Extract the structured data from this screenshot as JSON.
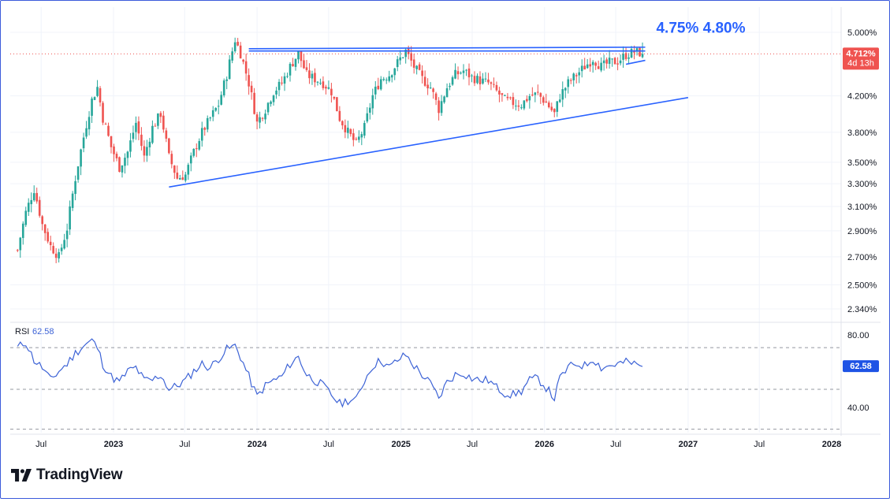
{
  "colors": {
    "up": "#26a69a",
    "down": "#ef5350",
    "trendline": "#2962ff",
    "rsi_line": "#3d63d6",
    "axis_text": "#131722",
    "grid": "#f0f3fa",
    "price_badge": "#ef5350",
    "rsi_badge": "#1e53e5"
  },
  "chart_data": {
    "type": "candlestick",
    "symbol_timeframe": "weekly",
    "price_scale": "log",
    "y_ticks": [
      "5.000%",
      "4.200%",
      "3.800%",
      "3.500%",
      "3.300%",
      "3.100%",
      "2.900%",
      "2.700%",
      "2.500%",
      "2.340%"
    ],
    "y_tick_values": [
      5.0,
      4.2,
      3.8,
      3.5,
      3.3,
      3.1,
      2.9,
      2.7,
      2.5,
      2.34
    ],
    "x_ticks": [
      "Jul",
      "2023",
      "Jul",
      "2024",
      "Jul",
      "2025",
      "Jul",
      "2026",
      "Jul",
      "2027",
      "Jul",
      "2028"
    ],
    "x_tick_dates": [
      "2022-07-01",
      "2023-01-01",
      "2023-07-01",
      "2024-01-01",
      "2024-07-01",
      "2025-01-01",
      "2025-07-01",
      "2026-01-01",
      "2026-07-01",
      "2027-01-01",
      "2027-07-01",
      "2028-01-01"
    ],
    "last_price_label": "4.712%",
    "countdown_label": "4d 13h",
    "last_price": 4.712,
    "annotation": "4.75% 4.80%",
    "price_path": [
      [
        "2022-05-02",
        2.75
      ],
      [
        "2022-05-23",
        3.05
      ],
      [
        "2022-06-13",
        3.25
      ],
      [
        "2022-07-04",
        2.95
      ],
      [
        "2022-07-25",
        2.78
      ],
      [
        "2022-08-15",
        2.7
      ],
      [
        "2022-09-05",
        2.92
      ],
      [
        "2022-09-26",
        3.35
      ],
      [
        "2022-10-17",
        3.75
      ],
      [
        "2022-11-07",
        4.15
      ],
      [
        "2022-11-21",
        4.3
      ],
      [
        "2022-12-05",
        3.95
      ],
      [
        "2022-12-26",
        3.65
      ],
      [
        "2023-01-16",
        3.45
      ],
      [
        "2023-02-06",
        3.6
      ],
      [
        "2023-02-27",
        3.9
      ],
      [
        "2023-03-20",
        3.55
      ],
      [
        "2023-04-10",
        3.85
      ],
      [
        "2023-05-01",
        4.0
      ],
      [
        "2023-05-22",
        3.55
      ],
      [
        "2023-06-12",
        3.35
      ],
      [
        "2023-07-03",
        3.38
      ],
      [
        "2023-07-24",
        3.6
      ],
      [
        "2023-08-14",
        3.8
      ],
      [
        "2023-09-04",
        3.95
      ],
      [
        "2023-09-25",
        4.1
      ],
      [
        "2023-10-16",
        4.45
      ],
      [
        "2023-11-06",
        4.9
      ],
      [
        "2023-11-20",
        4.72
      ],
      [
        "2023-12-11",
        4.35
      ],
      [
        "2024-01-01",
        3.9
      ],
      [
        "2024-01-22",
        4.05
      ],
      [
        "2024-02-12",
        4.25
      ],
      [
        "2024-03-04",
        4.35
      ],
      [
        "2024-03-25",
        4.55
      ],
      [
        "2024-04-15",
        4.72
      ],
      [
        "2024-05-06",
        4.45
      ],
      [
        "2024-05-27",
        4.4
      ],
      [
        "2024-06-17",
        4.35
      ],
      [
        "2024-07-08",
        4.25
      ],
      [
        "2024-07-29",
        3.95
      ],
      [
        "2024-08-19",
        3.8
      ],
      [
        "2024-09-09",
        3.68
      ],
      [
        "2024-09-30",
        3.85
      ],
      [
        "2024-10-21",
        4.2
      ],
      [
        "2024-11-11",
        4.4
      ],
      [
        "2024-12-02",
        4.45
      ],
      [
        "2024-12-23",
        4.6
      ],
      [
        "2025-01-13",
        4.75
      ],
      [
        "2025-02-03",
        4.55
      ],
      [
        "2025-02-24",
        4.4
      ],
      [
        "2025-03-17",
        4.3
      ],
      [
        "2025-04-07",
        4.05
      ],
      [
        "2025-04-28",
        4.3
      ],
      [
        "2025-05-19",
        4.45
      ],
      [
        "2025-06-09",
        4.5
      ],
      [
        "2025-06-30",
        4.42
      ],
      [
        "2025-07-21",
        4.38
      ],
      [
        "2025-08-11",
        4.35
      ],
      [
        "2025-09-01",
        4.25
      ],
      [
        "2025-09-22",
        4.15
      ],
      [
        "2025-10-13",
        4.12
      ],
      [
        "2025-11-03",
        4.1
      ],
      [
        "2025-11-24",
        4.2
      ],
      [
        "2025-12-15",
        4.22
      ],
      [
        "2026-01-05",
        4.12
      ],
      [
        "2026-01-26",
        4.0
      ],
      [
        "2026-02-09",
        4.2
      ],
      [
        "2026-03-02",
        4.35
      ],
      [
        "2026-03-23",
        4.45
      ],
      [
        "2026-04-13",
        4.55
      ],
      [
        "2026-05-04",
        4.65
      ],
      [
        "2026-05-25",
        4.55
      ],
      [
        "2026-06-15",
        4.6
      ],
      [
        "2026-07-06",
        4.62
      ],
      [
        "2026-07-27",
        4.7
      ],
      [
        "2026-08-17",
        4.74
      ],
      [
        "2026-09-07",
        4.72
      ]
    ],
    "trendlines": [
      {
        "from": [
          "2023-05-22",
          3.27
        ],
        "to": [
          "2027-01-01",
          4.18
        ]
      },
      {
        "from": [
          "2023-12-11",
          4.78
        ],
        "to": [
          "2026-09-14",
          4.8
        ]
      },
      {
        "from": [
          "2023-12-11",
          4.75
        ],
        "to": [
          "2026-09-14",
          4.75
        ]
      },
      {
        "from": [
          "2026-07-27",
          4.58
        ],
        "to": [
          "2026-09-14",
          4.63
        ]
      }
    ],
    "rsi": {
      "label": "RSI",
      "value_label": "62.58",
      "value": 62.58,
      "levels": [
        80,
        70,
        50,
        30
      ],
      "tick_labels": [
        "80.00",
        "40.00"
      ],
      "tick_values": [
        80,
        40
      ],
      "path": [
        [
          "2022-05-02",
          73
        ],
        [
          "2022-05-23",
          76
        ],
        [
          "2022-06-13",
          66
        ],
        [
          "2022-07-04",
          62
        ],
        [
          "2022-07-25",
          55
        ],
        [
          "2022-08-15",
          60
        ],
        [
          "2022-09-05",
          64
        ],
        [
          "2022-09-26",
          70
        ],
        [
          "2022-10-17",
          74
        ],
        [
          "2022-11-07",
          77
        ],
        [
          "2022-11-21",
          73
        ],
        [
          "2022-12-05",
          64
        ],
        [
          "2022-12-26",
          57
        ],
        [
          "2023-01-16",
          54
        ],
        [
          "2023-02-06",
          60
        ],
        [
          "2023-02-27",
          62
        ],
        [
          "2023-03-20",
          55
        ],
        [
          "2023-04-10",
          55
        ],
        [
          "2023-05-01",
          58
        ],
        [
          "2023-05-22",
          50
        ],
        [
          "2023-06-12",
          52
        ],
        [
          "2023-07-03",
          55
        ],
        [
          "2023-07-24",
          60
        ],
        [
          "2023-08-14",
          64
        ],
        [
          "2023-09-04",
          62
        ],
        [
          "2023-09-25",
          67
        ],
        [
          "2023-10-16",
          72
        ],
        [
          "2023-11-06",
          74
        ],
        [
          "2023-11-20",
          68
        ],
        [
          "2023-12-11",
          57
        ],
        [
          "2024-01-01",
          46
        ],
        [
          "2024-01-22",
          52
        ],
        [
          "2024-02-12",
          55
        ],
        [
          "2024-03-04",
          57
        ],
        [
          "2024-03-25",
          64
        ],
        [
          "2024-04-15",
          68
        ],
        [
          "2024-05-06",
          58
        ],
        [
          "2024-05-27",
          55
        ],
        [
          "2024-06-17",
          52
        ],
        [
          "2024-07-08",
          47
        ],
        [
          "2024-07-29",
          42
        ],
        [
          "2024-08-19",
          44
        ],
        [
          "2024-09-09",
          44
        ],
        [
          "2024-09-30",
          55
        ],
        [
          "2024-10-21",
          63
        ],
        [
          "2024-11-11",
          66
        ],
        [
          "2024-12-02",
          62
        ],
        [
          "2024-12-23",
          66
        ],
        [
          "2025-01-13",
          69
        ],
        [
          "2025-02-03",
          63
        ],
        [
          "2025-02-24",
          58
        ],
        [
          "2025-03-17",
          53
        ],
        [
          "2025-04-07",
          45
        ],
        [
          "2025-04-28",
          54
        ],
        [
          "2025-05-19",
          58
        ],
        [
          "2025-06-09",
          59
        ],
        [
          "2025-06-30",
          56
        ],
        [
          "2025-07-21",
          55
        ],
        [
          "2025-08-11",
          55
        ],
        [
          "2025-09-01",
          51
        ],
        [
          "2025-09-22",
          48
        ],
        [
          "2025-10-13",
          47
        ],
        [
          "2025-11-03",
          49
        ],
        [
          "2025-11-24",
          55
        ],
        [
          "2025-12-15",
          56
        ],
        [
          "2026-01-05",
          51
        ],
        [
          "2026-01-26",
          45
        ],
        [
          "2026-02-09",
          56
        ],
        [
          "2026-03-02",
          62
        ],
        [
          "2026-03-23",
          64
        ],
        [
          "2026-04-13",
          63
        ],
        [
          "2026-05-04",
          67
        ],
        [
          "2026-05-25",
          62
        ],
        [
          "2026-06-15",
          63
        ],
        [
          "2026-07-06",
          64
        ],
        [
          "2026-07-27",
          65
        ],
        [
          "2026-08-17",
          64
        ],
        [
          "2026-09-07",
          62.58
        ]
      ]
    }
  },
  "brand": {
    "name": "TradingView"
  }
}
